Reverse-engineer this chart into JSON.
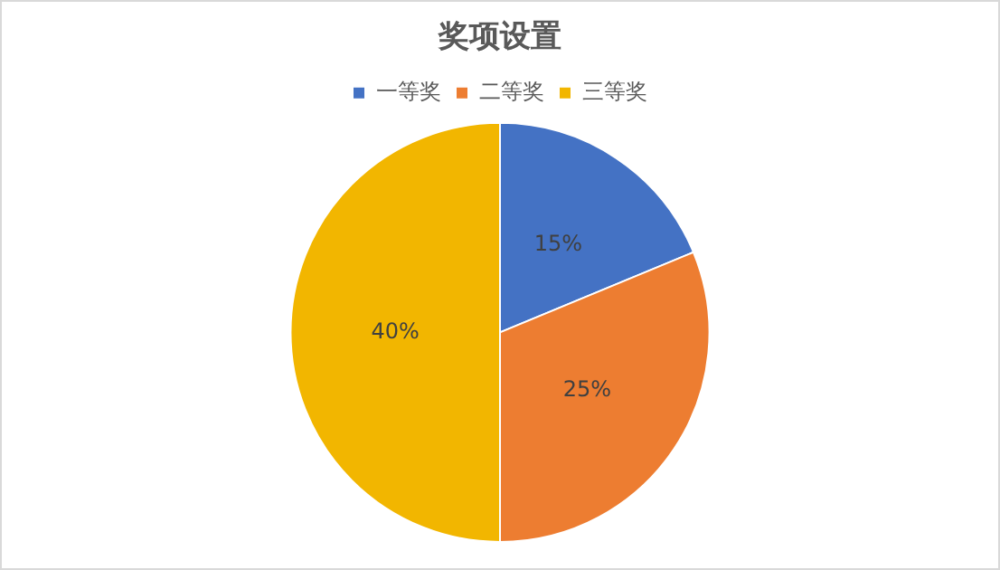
{
  "chart_data": {
    "type": "pie",
    "title": "奖项设置",
    "categories": [
      "一等奖",
      "二等奖",
      "三等奖"
    ],
    "values": [
      15,
      25,
      40
    ],
    "colors": [
      "#4472c4",
      "#ed7d31",
      "#f2b600"
    ],
    "value_labels": [
      "15%",
      "25%",
      "40%"
    ],
    "legend": "top"
  }
}
